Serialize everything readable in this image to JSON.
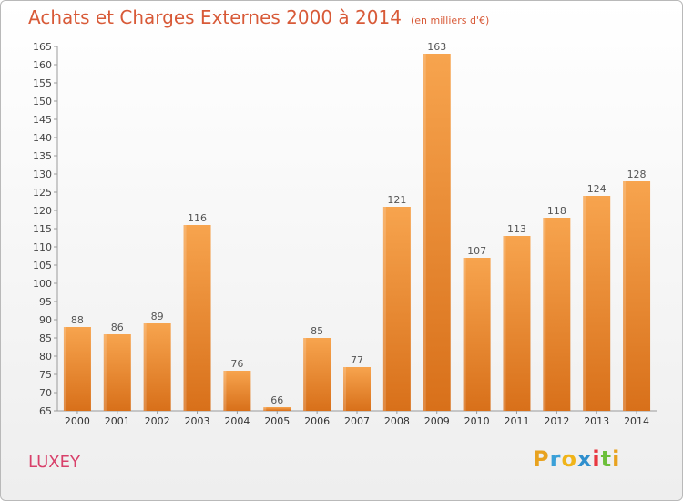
{
  "header": {
    "title": "Achats et Charges Externes 2000 à 2014",
    "unit": "(en milliers d'€)"
  },
  "footer": {
    "commune": "LUXEY",
    "logo_text": "Proxiti",
    "logo_colors": [
      "#e8a21f",
      "#3aa0d8",
      "#f0b419",
      "#2f8fce",
      "#e8373f",
      "#6cbf3a",
      "#e8a21f"
    ]
  },
  "chart_data": {
    "type": "bar",
    "title": "Achats et Charges Externes 2000 à 2014",
    "subtitle": "(en milliers d'€)",
    "categories": [
      "2000",
      "2001",
      "2002",
      "2003",
      "2004",
      "2005",
      "2006",
      "2007",
      "2008",
      "2009",
      "2010",
      "2011",
      "2012",
      "2013",
      "2014"
    ],
    "values": [
      88,
      86,
      89,
      116,
      76,
      66,
      85,
      77,
      121,
      163,
      107,
      113,
      118,
      124,
      128
    ],
    "ylim": [
      65,
      165
    ],
    "ytick_step": 5,
    "grid": false,
    "bar_color": "#f08a2a",
    "label_color": "#555555"
  }
}
